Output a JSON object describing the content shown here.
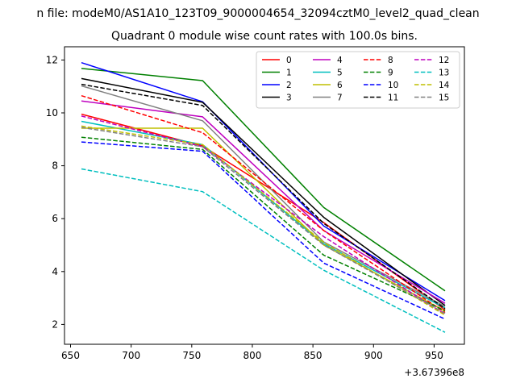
{
  "suptitle": "n file: modeM0/AS1A10_123T09_9000004654_32094cztM0_level2_quad_clean",
  "chart_data": {
    "type": "line",
    "title": "Quadrant 0 module wise count rates with 100.0s bins.",
    "xlabel": "",
    "ylabel": "",
    "x_offset_label": "+3.67396e8",
    "x": [
      659,
      759,
      859,
      959
    ],
    "xlim": [
      645,
      975
    ],
    "ylim": [
      1.25,
      12.5
    ],
    "xticks": [
      650,
      700,
      750,
      800,
      850,
      900,
      950
    ],
    "yticks": [
      2,
      4,
      6,
      8,
      10,
      12
    ],
    "grid": false,
    "legend_position": "top-right",
    "legend_columns": 4,
    "series": [
      {
        "name": "0",
        "color": "#ff0000",
        "dash": "solid",
        "values": [
          9.95,
          8.75,
          5.85,
          2.55
        ]
      },
      {
        "name": "1",
        "color": "#008000",
        "dash": "solid",
        "values": [
          11.68,
          11.22,
          6.42,
          3.27
        ]
      },
      {
        "name": "2",
        "color": "#0000ff",
        "dash": "solid",
        "values": [
          11.9,
          10.42,
          5.72,
          2.9
        ]
      },
      {
        "name": "3",
        "color": "#000000",
        "dash": "solid",
        "values": [
          11.3,
          10.4,
          6.05,
          2.72
        ]
      },
      {
        "name": "4",
        "color": "#bf00bf",
        "dash": "solid",
        "values": [
          10.45,
          9.85,
          5.55,
          2.8
        ]
      },
      {
        "name": "5",
        "color": "#00bfbf",
        "dash": "solid",
        "values": [
          9.68,
          8.8,
          5.05,
          2.62
        ]
      },
      {
        "name": "6",
        "color": "#bfbf00",
        "dash": "solid",
        "values": [
          9.42,
          9.42,
          5.0,
          2.5
        ]
      },
      {
        "name": "7",
        "color": "#808080",
        "dash": "solid",
        "values": [
          11.02,
          9.7,
          5.12,
          2.68
        ]
      },
      {
        "name": "8",
        "color": "#ff0000",
        "dash": "dashed",
        "values": [
          10.65,
          9.25,
          5.55,
          2.45
        ]
      },
      {
        "name": "9",
        "color": "#008000",
        "dash": "dashed",
        "values": [
          9.08,
          8.62,
          4.62,
          2.52
        ]
      },
      {
        "name": "10",
        "color": "#0000ff",
        "dash": "dashed",
        "values": [
          8.9,
          8.55,
          4.32,
          2.2
        ]
      },
      {
        "name": "11",
        "color": "#000000",
        "dash": "dashed",
        "values": [
          11.08,
          10.28,
          5.82,
          2.6
        ]
      },
      {
        "name": "12",
        "color": "#bf00bf",
        "dash": "dashed",
        "values": [
          9.88,
          8.72,
          5.32,
          2.38
        ]
      },
      {
        "name": "13",
        "color": "#00bfbf",
        "dash": "dashed",
        "values": [
          7.88,
          7.02,
          4.05,
          1.7
        ]
      },
      {
        "name": "14",
        "color": "#bfbf00",
        "dash": "dashed",
        "values": [
          9.5,
          8.8,
          5.1,
          2.35
        ]
      },
      {
        "name": "15",
        "color": "#808080",
        "dash": "dashed",
        "values": [
          9.45,
          8.72,
          5.0,
          2.42
        ]
      }
    ]
  }
}
